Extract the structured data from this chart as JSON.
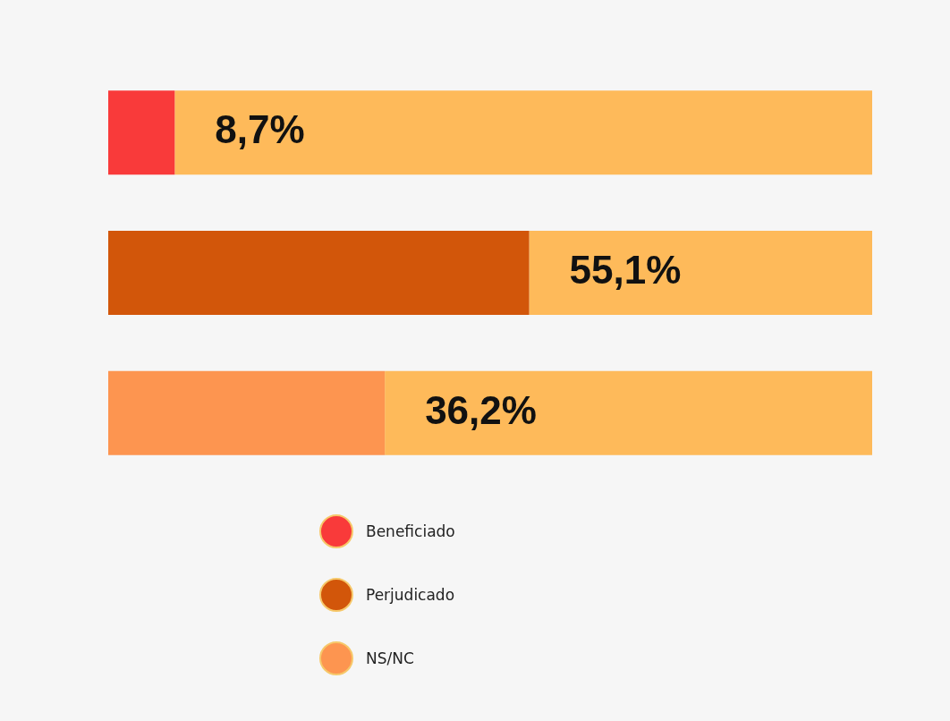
{
  "chart_data": {
    "type": "bar",
    "orientation": "horizontal",
    "stacked": true,
    "categories": [
      null,
      null,
      null
    ],
    "series": [
      {
        "name": "Beneficiado",
        "color": "#f93a3a",
        "values": [
          8.7,
          null,
          null
        ],
        "value_labels": [
          "8,7%",
          null,
          null
        ]
      },
      {
        "name": "Perjudicado",
        "color": "#d2560a",
        "values": [
          null,
          55.1,
          null
        ],
        "value_labels": [
          null,
          "55,1%",
          null
        ]
      },
      {
        "name": "NS/NC",
        "color": "#fd9550",
        "values": [
          null,
          null,
          36.2
        ],
        "value_labels": [
          null,
          null,
          "36,2%"
        ]
      },
      {
        "color": "#feba5a",
        "values": [
          91.3,
          44.9,
          63.8
        ]
      }
    ],
    "xlim": [
      0,
      100
    ],
    "tick_labels": false,
    "grid": false,
    "legend": "bottom"
  }
}
